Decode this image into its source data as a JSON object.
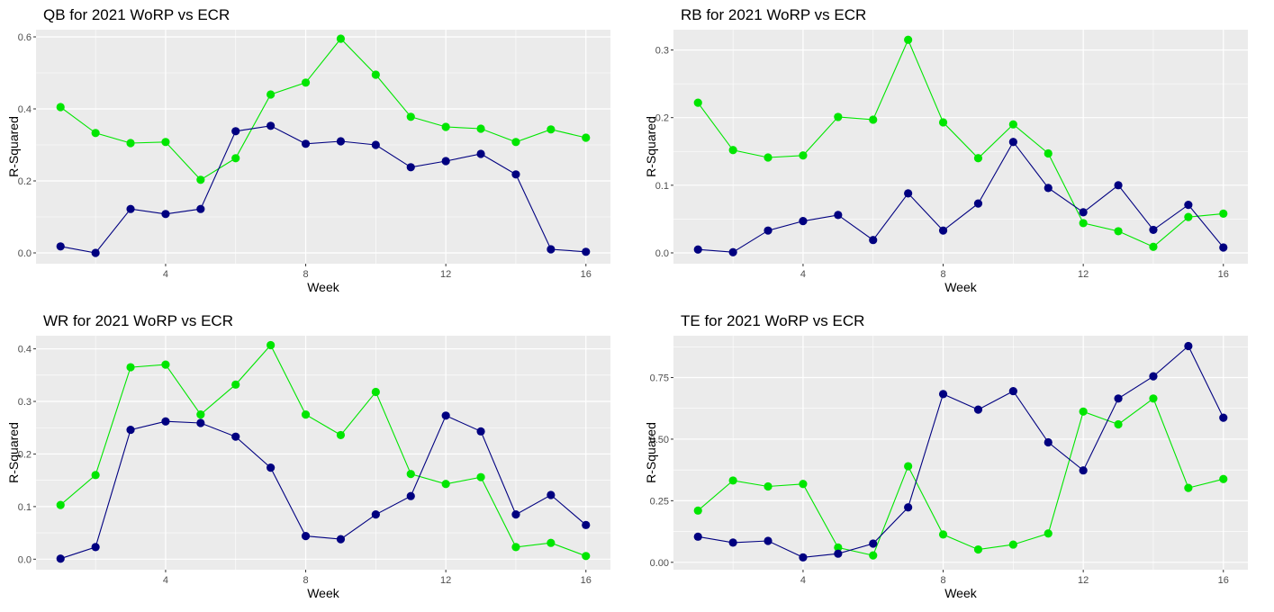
{
  "colors": {
    "green_series": "#00e600",
    "blue_series": "#000080",
    "panel_bg": "#ebebeb",
    "grid": "#ffffff"
  },
  "chart_data": [
    {
      "type": "line",
      "title": "QB for 2021 WoRP vs ECR",
      "xlabel": "Week",
      "ylabel": "R-Squared",
      "xlim": [
        0.3,
        16.7
      ],
      "ylim": [
        -0.03,
        0.62
      ],
      "xticks": [
        4,
        8,
        12,
        16
      ],
      "yticks": [
        0,
        0.2,
        0.4,
        0.6
      ],
      "ytick_labels": [
        "0.0",
        "0.2",
        "0.4",
        "0.6"
      ],
      "grid": true,
      "x": [
        1,
        2,
        3,
        4,
        5,
        6,
        7,
        8,
        9,
        10,
        11,
        12,
        13,
        14,
        15,
        16
      ],
      "series": [
        {
          "color": "#00e600",
          "values": [
            0.405,
            0.333,
            0.305,
            0.308,
            0.203,
            0.263,
            0.44,
            0.473,
            0.595,
            0.495,
            0.378,
            0.35,
            0.345,
            0.308,
            0.343,
            0.32
          ]
        },
        {
          "color": "#000080",
          "values": [
            0.018,
            0.0,
            0.122,
            0.108,
            0.122,
            0.338,
            0.353,
            0.303,
            0.31,
            0.3,
            0.238,
            0.255,
            0.275,
            0.218,
            0.01,
            0.003
          ]
        }
      ]
    },
    {
      "type": "line",
      "title": "RB for 2021 WoRP vs ECR",
      "xlabel": "Week",
      "ylabel": "R-Squared",
      "xlim": [
        0.3,
        16.7
      ],
      "ylim": [
        -0.016,
        0.33
      ],
      "xticks": [
        4,
        8,
        12,
        16
      ],
      "yticks": [
        0,
        0.1,
        0.2,
        0.3
      ],
      "ytick_labels": [
        "0.0",
        "0.1",
        "0.2",
        "0.3"
      ],
      "grid": true,
      "x": [
        1,
        2,
        3,
        4,
        5,
        6,
        7,
        8,
        9,
        10,
        11,
        12,
        13,
        14,
        15,
        16
      ],
      "series": [
        {
          "color": "#00e600",
          "values": [
            0.222,
            0.152,
            0.141,
            0.144,
            0.201,
            0.197,
            0.315,
            0.193,
            0.14,
            0.19,
            0.147,
            0.044,
            0.032,
            0.009,
            0.053,
            0.058
          ]
        },
        {
          "color": "#000080",
          "values": [
            0.005,
            0.001,
            0.033,
            0.047,
            0.056,
            0.019,
            0.088,
            0.033,
            0.073,
            0.164,
            0.096,
            0.06,
            0.1,
            0.034,
            0.071,
            0.008
          ]
        }
      ]
    },
    {
      "type": "line",
      "title": "WR for 2021 WoRP vs ECR",
      "xlabel": "Week",
      "ylabel": "R-Squared",
      "xlim": [
        0.3,
        16.7
      ],
      "ylim": [
        -0.02,
        0.425
      ],
      "xticks": [
        4,
        8,
        12,
        16
      ],
      "yticks": [
        0,
        0.1,
        0.2,
        0.3,
        0.4
      ],
      "ytick_labels": [
        "0.0",
        "0.1",
        "0.2",
        "0.3",
        "0.4"
      ],
      "grid": true,
      "x": [
        1,
        2,
        3,
        4,
        5,
        6,
        7,
        8,
        9,
        10,
        11,
        12,
        13,
        14,
        15,
        16
      ],
      "series": [
        {
          "color": "#00e600",
          "values": [
            0.103,
            0.16,
            0.365,
            0.37,
            0.275,
            0.332,
            0.407,
            0.275,
            0.236,
            0.318,
            0.162,
            0.143,
            0.156,
            0.023,
            0.031,
            0.006
          ]
        },
        {
          "color": "#000080",
          "values": [
            0.001,
            0.023,
            0.246,
            0.262,
            0.259,
            0.233,
            0.174,
            0.044,
            0.038,
            0.085,
            0.12,
            0.273,
            0.243,
            0.085,
            0.122,
            0.065
          ]
        }
      ]
    },
    {
      "type": "line",
      "title": "TE for 2021 WoRP vs ECR",
      "xlabel": "Week",
      "ylabel": "R-Squared",
      "xlim": [
        0.3,
        16.7
      ],
      "ylim": [
        -0.03,
        0.92
      ],
      "xticks": [
        4,
        8,
        12,
        16
      ],
      "yticks": [
        0,
        0.25,
        0.5,
        0.75
      ],
      "ytick_labels": [
        "0.00",
        "0.25",
        "0.50",
        "0.75"
      ],
      "grid": true,
      "x": [
        1,
        2,
        3,
        4,
        5,
        6,
        7,
        8,
        9,
        10,
        11,
        12,
        13,
        14,
        15,
        16
      ],
      "series": [
        {
          "color": "#00e600",
          "values": [
            0.21,
            0.332,
            0.308,
            0.318,
            0.06,
            0.028,
            0.39,
            0.113,
            0.052,
            0.072,
            0.117,
            0.612,
            0.56,
            0.665,
            0.302,
            0.338
          ]
        },
        {
          "color": "#000080",
          "values": [
            0.104,
            0.08,
            0.087,
            0.02,
            0.035,
            0.076,
            0.223,
            0.683,
            0.62,
            0.695,
            0.487,
            0.373,
            0.665,
            0.755,
            0.878,
            0.587
          ]
        }
      ]
    }
  ]
}
